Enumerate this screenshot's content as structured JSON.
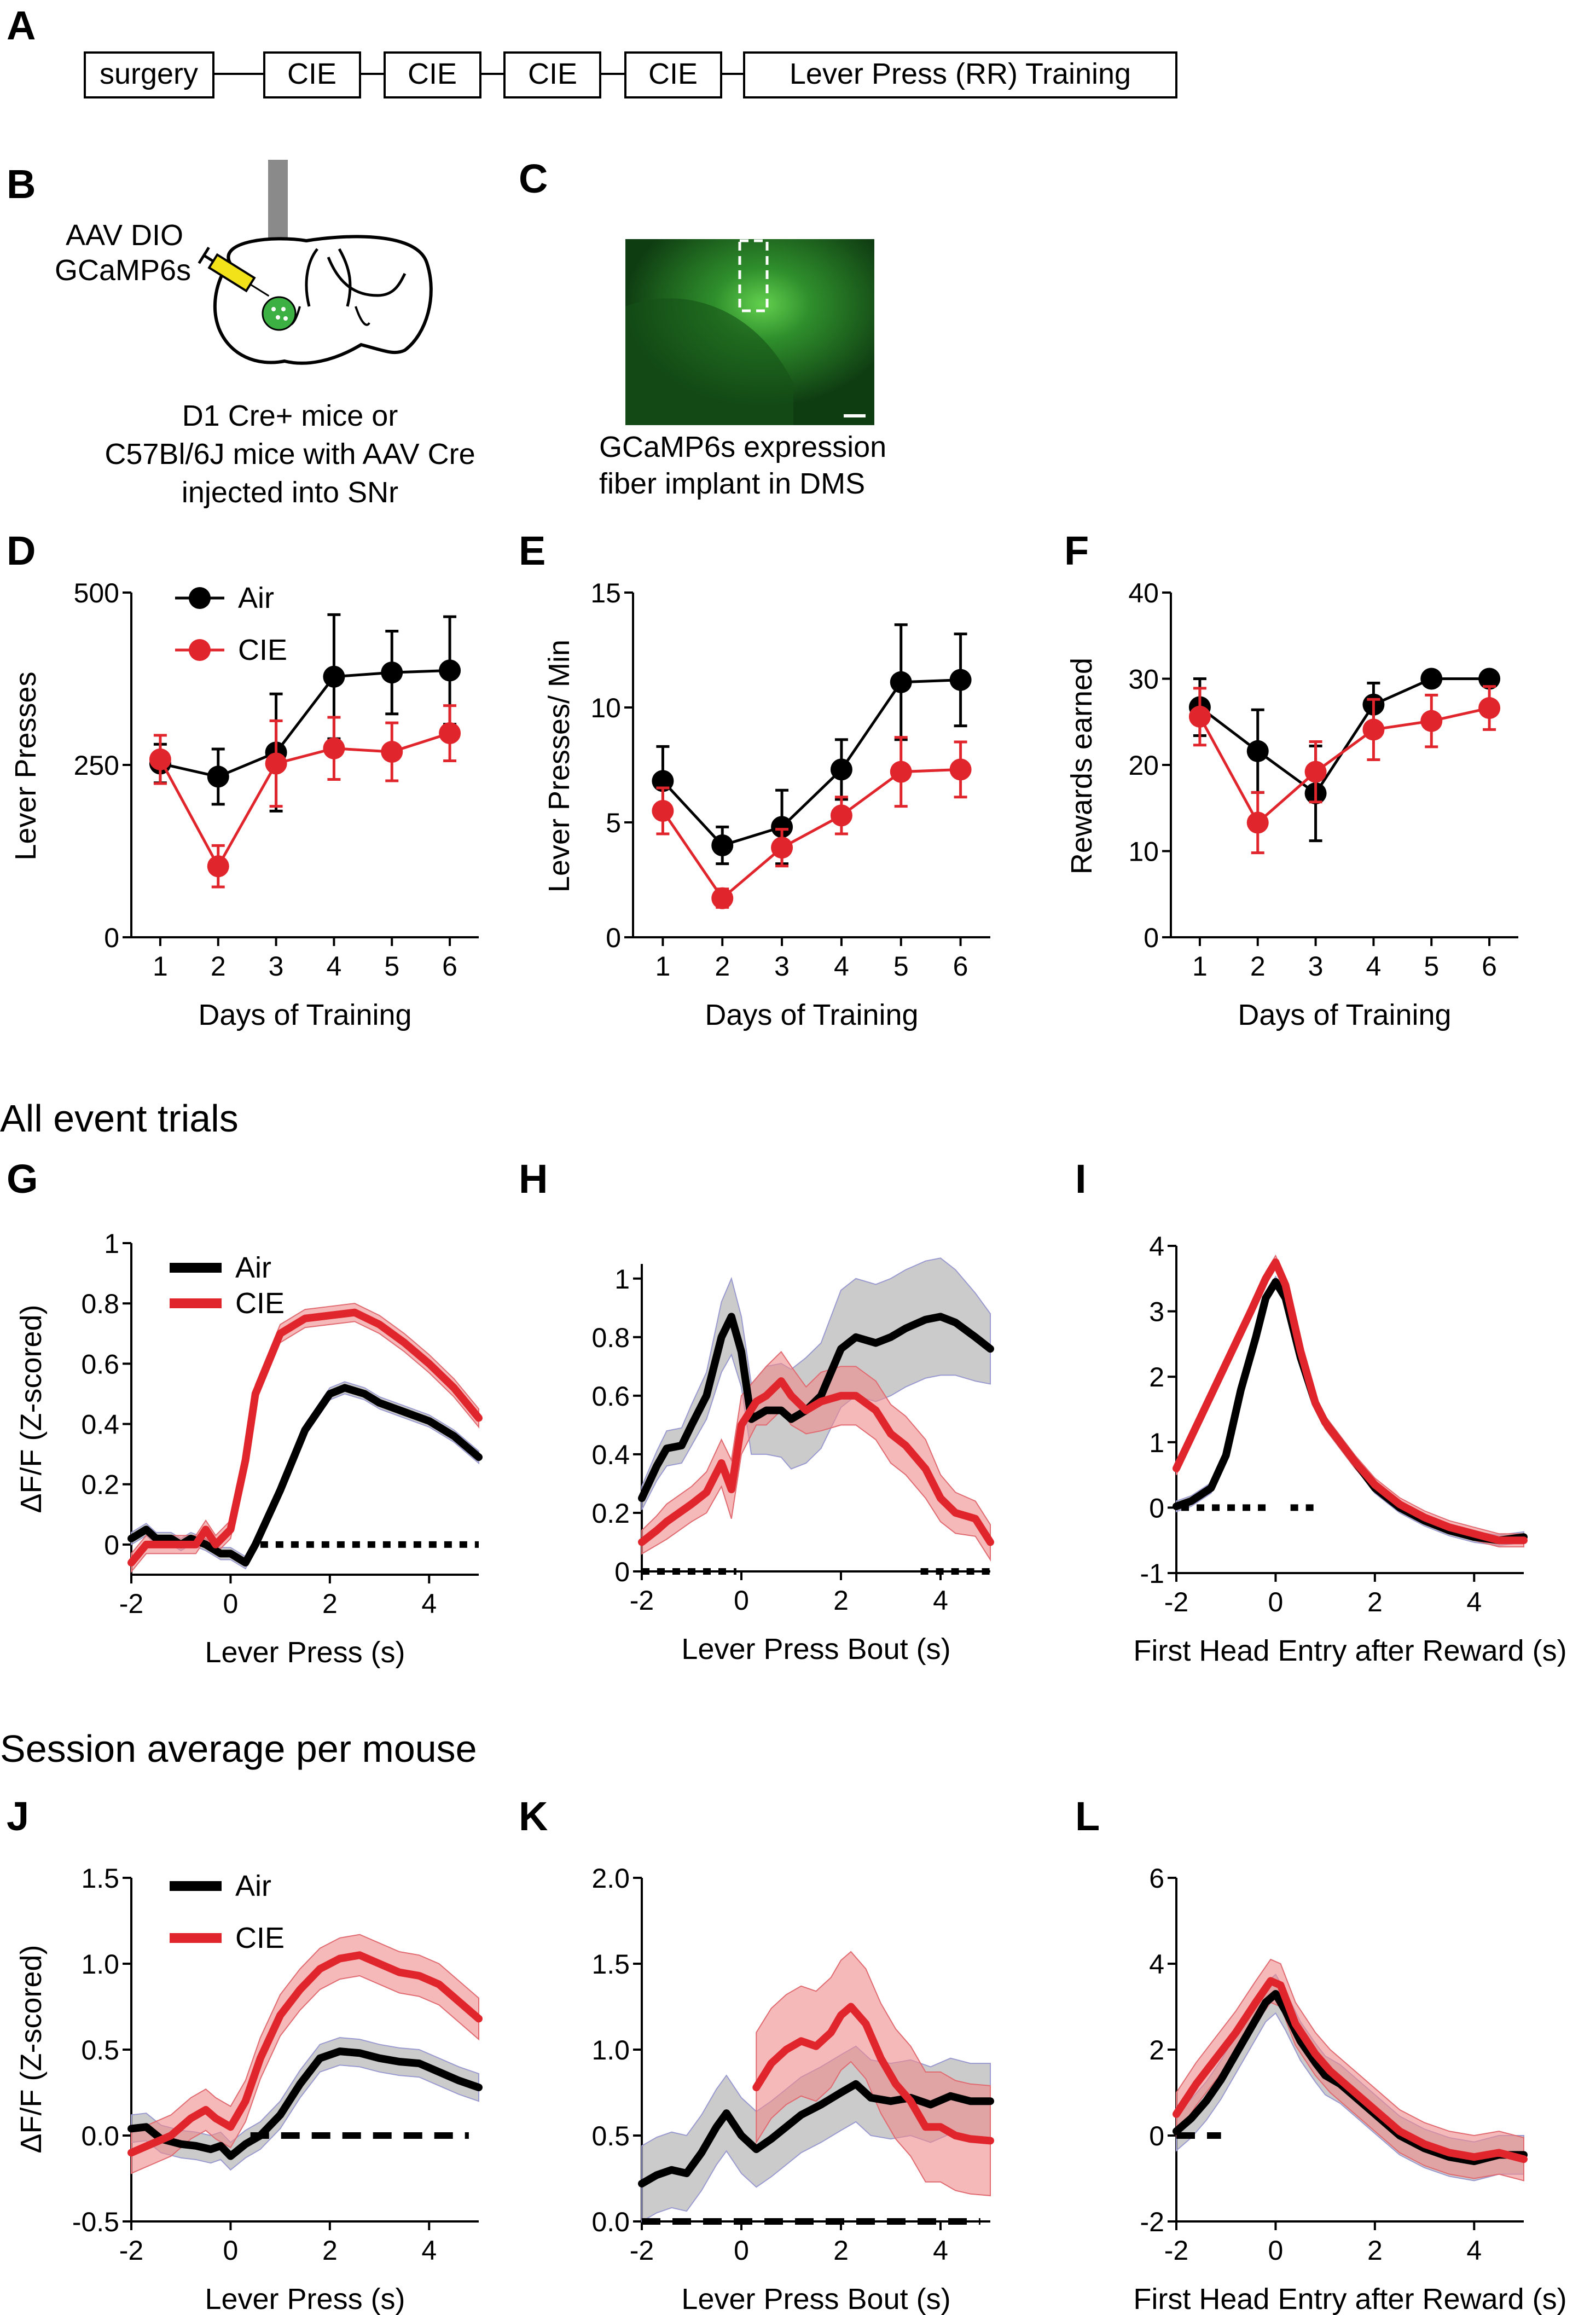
{
  "panel_labels": {
    "A": "A",
    "B": "B",
    "C": "C",
    "D": "D",
    "E": "E",
    "F": "F",
    "G": "G",
    "H": "H",
    "I": "I",
    "J": "J",
    "K": "K",
    "L": "L"
  },
  "colors": {
    "air": "#000000",
    "cie": "#e0262c",
    "air_band": "#a9a9a9",
    "cie_band": "#f08a8c",
    "fluor_bg": "#0f3d12",
    "fluor_bright": "#62d04e"
  },
  "timeline": {
    "boxes": [
      "surgery",
      "CIE",
      "CIE",
      "CIE",
      "CIE",
      "Lever Press (RR) Training"
    ]
  },
  "schematic": {
    "virus_label_1": "AAV DIO",
    "virus_label_2": "GCaMP6s",
    "caption": [
      "D1 Cre+ mice or",
      "C57Bl/6J mice with AAV Cre",
      "injected into SNr"
    ],
    "syringe_color": "#f2e21a"
  },
  "histology": {
    "caption": [
      "GCaMP6s expression",
      "fiber implant in DMS"
    ]
  },
  "section_titles": {
    "all_trials": "All event trials",
    "session_avg": "Session average per mouse"
  },
  "chart_data": [
    {
      "id": "D",
      "type": "line",
      "xlabel": "Days of Training",
      "ylabel": "Lever Presses",
      "x": [
        1,
        2,
        3,
        4,
        5,
        6
      ],
      "xlim": [
        0.5,
        6.5
      ],
      "ylim": [
        0,
        500
      ],
      "yticks": [
        0,
        250,
        500
      ],
      "xticks": [
        1,
        2,
        3,
        4,
        5,
        6
      ],
      "legend": [
        "Air",
        "CIE"
      ],
      "series": [
        {
          "name": "Air",
          "values": [
            252,
            233,
            268,
            378,
            384,
            387
          ],
          "err": [
            28,
            40,
            85,
            90,
            60,
            78
          ]
        },
        {
          "name": "CIE",
          "values": [
            258,
            103,
            252,
            274,
            269,
            296
          ],
          "err": [
            35,
            30,
            62,
            45,
            42,
            40
          ]
        }
      ]
    },
    {
      "id": "E",
      "type": "line",
      "xlabel": "Days of Training",
      "ylabel": "Lever Presses/ Min",
      "x": [
        1,
        2,
        3,
        4,
        5,
        6
      ],
      "xlim": [
        0.5,
        6.5
      ],
      "ylim": [
        0,
        15
      ],
      "yticks": [
        0,
        5,
        10,
        15
      ],
      "xticks": [
        1,
        2,
        3,
        4,
        5,
        6
      ],
      "series": [
        {
          "name": "Air",
          "values": [
            6.8,
            4.0,
            4.8,
            7.3,
            11.1,
            11.2
          ],
          "err": [
            1.5,
            0.8,
            1.6,
            1.3,
            2.5,
            2.0
          ]
        },
        {
          "name": "CIE",
          "values": [
            5.5,
            1.7,
            3.9,
            5.3,
            7.2,
            7.3
          ],
          "err": [
            1.0,
            0.4,
            0.8,
            0.8,
            1.5,
            1.2
          ]
        }
      ]
    },
    {
      "id": "F",
      "type": "line",
      "xlabel": "Days of Training",
      "ylabel": "Rewards earned",
      "x": [
        1,
        2,
        3,
        4,
        5,
        6
      ],
      "xlim": [
        0.5,
        6.5
      ],
      "ylim": [
        0,
        40
      ],
      "yticks": [
        0,
        10,
        20,
        30,
        40
      ],
      "xticks": [
        1,
        2,
        3,
        4,
        5,
        6
      ],
      "series": [
        {
          "name": "Air",
          "values": [
            26.7,
            21.6,
            16.7,
            27.0,
            30.0,
            30.0
          ],
          "err": [
            3.3,
            4.8,
            5.5,
            2.5,
            0,
            0
          ]
        },
        {
          "name": "CIE",
          "values": [
            25.6,
            13.3,
            19.2,
            24.1,
            25.1,
            26.6
          ],
          "err": [
            3.3,
            3.5,
            3.5,
            3.5,
            3.0,
            2.5
          ]
        }
      ]
    },
    {
      "id": "G",
      "type": "line",
      "xlabel": "Lever Press (s)",
      "ylabel": "ΔF/F (Z-scored)",
      "xlim": [
        -2,
        5
      ],
      "ylim": [
        -0.1,
        1
      ],
      "yticks": [
        0,
        0.2,
        0.4,
        0.6,
        0.8,
        1
      ],
      "ytick_labels": [
        "0",
        "0.2",
        "0.4",
        "0.6",
        "0.8",
        "1"
      ],
      "xticks": [
        -2,
        0,
        2,
        4
      ],
      "legend": [
        "Air",
        "CIE"
      ],
      "series": [
        {
          "name": "Air",
          "x": [
            -2,
            -1.7,
            -1.5,
            -1.2,
            -1,
            -0.8,
            -0.5,
            -0.2,
            0,
            0.3,
            0.5,
            1,
            1.5,
            2,
            2.3,
            2.7,
            3,
            3.5,
            4,
            4.5,
            5
          ],
          "values": [
            0.02,
            0.05,
            0.02,
            0.02,
            0.0,
            0.02,
            0.0,
            -0.03,
            -0.03,
            -0.06,
            0.0,
            0.18,
            0.38,
            0.5,
            0.52,
            0.5,
            0.47,
            0.44,
            0.41,
            0.36,
            0.29
          ],
          "band": 0.02
        },
        {
          "name": "CIE",
          "x": [
            -2,
            -1.7,
            -1.5,
            -1,
            -0.7,
            -0.5,
            -0.3,
            0,
            0.3,
            0.5,
            1,
            1.5,
            2,
            2.5,
            3,
            3.5,
            4,
            4.5,
            5
          ],
          "values": [
            -0.06,
            0.0,
            0.0,
            0.0,
            0.0,
            0.05,
            0.0,
            0.05,
            0.28,
            0.5,
            0.7,
            0.75,
            0.76,
            0.77,
            0.73,
            0.67,
            0.6,
            0.52,
            0.42
          ],
          "band": 0.03
        }
      ],
      "sig_bar": {
        "x": [
          0.6,
          5
        ],
        "y": 0.0,
        "style": "dotted"
      }
    },
    {
      "id": "H",
      "type": "line",
      "xlabel": "Lever Press Bout (s)",
      "ylabel": "",
      "xlim": [
        -2,
        5
      ],
      "ylim": [
        0,
        1.05
      ],
      "yticks": [
        0,
        0.2,
        0.4,
        0.6,
        0.8,
        1
      ],
      "ytick_labels": [
        "0",
        "0.2",
        "0.4",
        "0.6",
        "0.8",
        "1"
      ],
      "xticks": [
        -2,
        0,
        2,
        4
      ],
      "series": [
        {
          "name": "Air",
          "x": [
            -2,
            -1.7,
            -1.5,
            -1.2,
            -1,
            -0.7,
            -0.4,
            -0.2,
            0,
            0.2,
            0.5,
            0.8,
            1,
            1.3,
            1.6,
            2,
            2.3,
            2.7,
            3,
            3.3,
            3.7,
            4,
            4.3,
            4.7,
            5
          ],
          "values": [
            0.25,
            0.36,
            0.42,
            0.43,
            0.5,
            0.6,
            0.8,
            0.87,
            0.75,
            0.52,
            0.55,
            0.55,
            0.52,
            0.55,
            0.6,
            0.76,
            0.8,
            0.78,
            0.8,
            0.83,
            0.86,
            0.87,
            0.85,
            0.8,
            0.76
          ],
          "band": [
            0.04,
            0.05,
            0.06,
            0.06,
            0.07,
            0.08,
            0.12,
            0.13,
            0.12,
            0.12,
            0.15,
            0.16,
            0.17,
            0.18,
            0.18,
            0.2,
            0.2,
            0.2,
            0.2,
            0.2,
            0.2,
            0.2,
            0.18,
            0.15,
            0.12
          ]
        },
        {
          "name": "CIE",
          "x": [
            -2,
            -1.7,
            -1.5,
            -1,
            -0.7,
            -0.4,
            -0.2,
            0,
            0.3,
            0.5,
            0.8,
            1,
            1.3,
            1.6,
            2,
            2.3,
            2.7,
            3,
            3.3,
            3.7,
            4,
            4.3,
            4.7,
            5
          ],
          "values": [
            0.1,
            0.14,
            0.17,
            0.23,
            0.27,
            0.37,
            0.28,
            0.5,
            0.58,
            0.6,
            0.65,
            0.6,
            0.55,
            0.58,
            0.6,
            0.6,
            0.55,
            0.47,
            0.43,
            0.35,
            0.25,
            0.2,
            0.18,
            0.1
          ],
          "band": [
            0.04,
            0.05,
            0.06,
            0.06,
            0.07,
            0.08,
            0.1,
            0.1,
            0.08,
            0.1,
            0.1,
            0.1,
            0.08,
            0.1,
            0.1,
            0.1,
            0.1,
            0.1,
            0.1,
            0.1,
            0.08,
            0.07,
            0.06,
            0.06
          ]
        }
      ],
      "sig_bar": {
        "segments": [
          [
            -2,
            -0.1
          ],
          [
            3.6,
            5
          ]
        ],
        "y": 0.0,
        "style": "dotted"
      }
    },
    {
      "id": "I",
      "type": "line",
      "xlabel": "First Head Entry after Reward (s)",
      "ylabel": "",
      "xlim": [
        -2,
        5
      ],
      "ylim": [
        -1,
        4
      ],
      "yticks": [
        -1,
        0,
        1,
        2,
        3,
        4
      ],
      "ytick_labels": [
        "-1",
        "0",
        "1",
        "2",
        "3",
        "4"
      ],
      "xticks": [
        -2,
        0,
        2,
        4
      ],
      "series": [
        {
          "name": "Air",
          "x": [
            -2,
            -1.7,
            -1.3,
            -1,
            -0.7,
            -0.4,
            -0.2,
            0,
            0.2,
            0.5,
            0.8,
            1,
            1.3,
            1.6,
            2,
            2.5,
            3,
            3.5,
            4,
            4.5,
            5
          ],
          "values": [
            0.02,
            0.1,
            0.3,
            0.8,
            1.8,
            2.6,
            3.2,
            3.45,
            3.2,
            2.3,
            1.6,
            1.3,
            1.0,
            0.7,
            0.3,
            0.0,
            -0.2,
            -0.35,
            -0.45,
            -0.5,
            -0.45
          ],
          "band": 0.08
        },
        {
          "name": "CIE",
          "x": [
            -2,
            -1.5,
            -1,
            -0.5,
            -0.2,
            0,
            0.2,
            0.5,
            0.8,
            1,
            1.3,
            1.6,
            2,
            2.5,
            3,
            3.5,
            4,
            4.5,
            5
          ],
          "values": [
            0.6,
            1.4,
            2.2,
            3.0,
            3.5,
            3.75,
            3.4,
            2.4,
            1.6,
            1.3,
            1.0,
            0.7,
            0.35,
            0.05,
            -0.15,
            -0.3,
            -0.4,
            -0.5,
            -0.5
          ],
          "band": 0.1
        }
      ],
      "sig_bar": {
        "segments": [
          [
            -1.9,
            -0.2
          ],
          [
            0.3,
            0.8
          ]
        ],
        "y": 0.0,
        "style": "dotted"
      }
    },
    {
      "id": "J",
      "type": "line",
      "xlabel": "Lever Press (s)",
      "ylabel": "ΔF/F (Z-scored)",
      "xlim": [
        -2,
        5
      ],
      "ylim": [
        -0.5,
        1.5
      ],
      "yticks": [
        -0.5,
        0,
        0.5,
        1,
        1.5
      ],
      "ytick_labels": [
        "-0.5",
        "0.0",
        "0.5",
        "1.0",
        "1.5"
      ],
      "xticks": [
        -2,
        0,
        2,
        4
      ],
      "legend": [
        "Air",
        "CIE"
      ],
      "series": [
        {
          "name": "Air",
          "x": [
            -2,
            -1.7,
            -1.4,
            -1,
            -0.7,
            -0.4,
            -0.2,
            0,
            0.3,
            0.6,
            1,
            1.4,
            1.8,
            2.2,
            2.6,
            3,
            3.4,
            3.8,
            4.2,
            4.6,
            5
          ],
          "values": [
            0.04,
            0.05,
            -0.02,
            -0.05,
            -0.06,
            -0.08,
            -0.06,
            -0.12,
            -0.05,
            0.0,
            0.12,
            0.3,
            0.45,
            0.49,
            0.48,
            0.45,
            0.43,
            0.42,
            0.37,
            0.32,
            0.28
          ],
          "band": 0.08
        },
        {
          "name": "CIE",
          "x": [
            -2,
            -1.6,
            -1.2,
            -1,
            -0.8,
            -0.5,
            -0.3,
            0,
            0.3,
            0.6,
            1,
            1.4,
            1.8,
            2.2,
            2.6,
            3,
            3.4,
            3.8,
            4.2,
            4.6,
            5
          ],
          "values": [
            -0.1,
            -0.05,
            0.0,
            0.05,
            0.1,
            0.15,
            0.1,
            0.05,
            0.2,
            0.45,
            0.7,
            0.85,
            0.97,
            1.03,
            1.05,
            1.0,
            0.95,
            0.93,
            0.88,
            0.78,
            0.68
          ],
          "band": 0.12
        }
      ],
      "sig_bar": {
        "x": [
          0.4,
          4.8
        ],
        "y": 0.0,
        "style": "dashed"
      }
    },
    {
      "id": "K",
      "type": "line",
      "xlabel": "Lever Press Bout (s)",
      "ylabel": "",
      "xlim": [
        -2,
        5
      ],
      "ylim": [
        0,
        2
      ],
      "yticks": [
        0,
        0.5,
        1,
        1.5,
        2
      ],
      "ytick_labels": [
        "0.0",
        "0.5",
        "1.0",
        "1.5",
        "2.0"
      ],
      "xticks": [
        -2,
        0,
        2,
        4
      ],
      "series": [
        {
          "name": "Air",
          "x": [
            -2,
            -1.7,
            -1.4,
            -1.1,
            -0.8,
            -0.5,
            -0.3,
            0,
            0.3,
            0.6,
            0.9,
            1.2,
            1.6,
            2,
            2.3,
            2.6,
            3,
            3.4,
            3.8,
            4.2,
            4.6,
            5
          ],
          "values": [
            0.22,
            0.27,
            0.3,
            0.28,
            0.4,
            0.55,
            0.63,
            0.5,
            0.42,
            0.48,
            0.55,
            0.62,
            0.68,
            0.75,
            0.8,
            0.72,
            0.7,
            0.72,
            0.68,
            0.73,
            0.7,
            0.7
          ],
          "band": 0.22
        },
        {
          "name": "CIE",
          "x": [
            0.3,
            0.6,
            0.9,
            1.2,
            1.5,
            1.8,
            2,
            2.2,
            2.5,
            2.8,
            3.1,
            3.4,
            3.7,
            4,
            4.3,
            4.6,
            5
          ],
          "values": [
            0.78,
            0.92,
            1.0,
            1.05,
            1.02,
            1.1,
            1.2,
            1.25,
            1.15,
            0.95,
            0.8,
            0.7,
            0.55,
            0.55,
            0.5,
            0.48,
            0.47
          ],
          "band": 0.32
        }
      ],
      "sig_bar": {
        "x": [
          -2,
          4.8
        ],
        "y": 0.0,
        "style": "dashed"
      }
    },
    {
      "id": "L",
      "type": "line",
      "xlabel": "First Head Entry after Reward (s)",
      "ylabel": "",
      "xlim": [
        -2,
        5
      ],
      "ylim": [
        -2,
        6
      ],
      "yticks": [
        -2,
        0,
        2,
        4,
        6
      ],
      "ytick_labels": [
        "-2",
        "0",
        "2",
        "4",
        "6"
      ],
      "xticks": [
        -2,
        0,
        2,
        4
      ],
      "series": [
        {
          "name": "Air",
          "x": [
            -2,
            -1.7,
            -1.4,
            -1.1,
            -0.8,
            -0.5,
            -0.2,
            0,
            0.2,
            0.5,
            0.8,
            1,
            1.3,
            1.6,
            2,
            2.5,
            3,
            3.5,
            4,
            4.5,
            5
          ],
          "values": [
            0.1,
            0.4,
            0.8,
            1.3,
            1.9,
            2.5,
            3.1,
            3.3,
            2.9,
            2.2,
            1.7,
            1.4,
            1.2,
            0.9,
            0.5,
            0.0,
            -0.3,
            -0.5,
            -0.6,
            -0.45,
            -0.45
          ],
          "band": 0.45
        },
        {
          "name": "CIE",
          "x": [
            -2,
            -1.6,
            -1.2,
            -0.8,
            -0.4,
            -0.1,
            0.1,
            0.4,
            0.8,
            1.1,
            1.5,
            2,
            2.5,
            3,
            3.5,
            4,
            4.5,
            5
          ],
          "values": [
            0.5,
            1.2,
            1.8,
            2.4,
            3.1,
            3.6,
            3.5,
            2.6,
            1.9,
            1.5,
            1.1,
            0.6,
            0.1,
            -0.2,
            -0.4,
            -0.5,
            -0.4,
            -0.55
          ],
          "band": 0.5
        }
      ],
      "sig_bar": {
        "x": [
          -2,
          -1.1
        ],
        "y": 0.0,
        "style": "dashed"
      }
    }
  ]
}
